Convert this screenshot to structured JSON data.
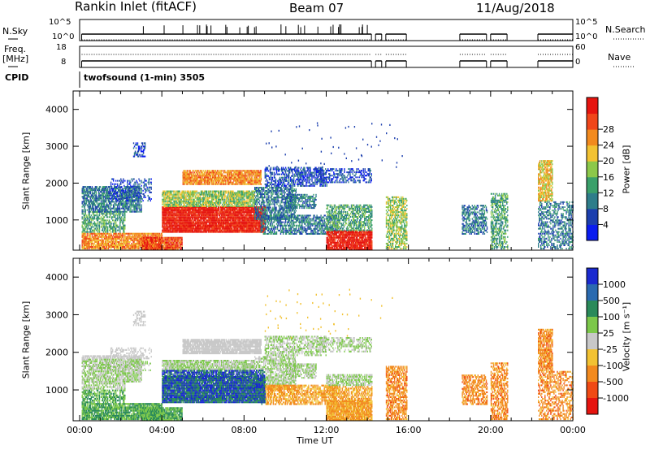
{
  "header": {
    "station": "Rankin Inlet (fitACF)",
    "beam": "Beam 07",
    "date": "11/Aug/2018"
  },
  "top_panels": {
    "nsky_label": "N.Sky",
    "nsky_ticks": [
      "10^5",
      "10^0"
    ],
    "nsearch_label": "N.Search",
    "freq_label_line1": "Freq.",
    "freq_label_line2": "[MHz]",
    "freq_ticks": [
      "18",
      "8"
    ],
    "nave_label": "Nave",
    "nave_ticks": [
      "60",
      "0"
    ],
    "cpid_label": "CPID",
    "cpid_value": "twofsound (1-min) 3505"
  },
  "chart_data": [
    {
      "type": "heatmap",
      "name": "power",
      "ylabel": "Slant Range [km]",
      "ylim": [
        180,
        4500
      ],
      "yticks": [
        "1000",
        "2000",
        "3000",
        "4000"
      ],
      "ytick_values": [
        1000,
        2000,
        3000,
        4000
      ],
      "xlim_hours": [
        0,
        24
      ],
      "colorbar_label": "Power [dB]",
      "colorbar_ticks": [
        "4",
        "8",
        "12",
        "16",
        "20",
        "24",
        "28"
      ],
      "colors": [
        "#0a1cf0",
        "#1c3fae",
        "#2e7d8a",
        "#3aa06a",
        "#8cc84a",
        "#f2c232",
        "#f28a1e",
        "#f0461a",
        "#e6140f"
      ]
    },
    {
      "type": "heatmap",
      "name": "velocity",
      "ylabel": "Slant Range [km]",
      "ylim": [
        180,
        4500
      ],
      "yticks": [
        "1000",
        "2000",
        "3000",
        "4000"
      ],
      "ytick_values": [
        1000,
        2000,
        3000,
        4000
      ],
      "xlim_hours": [
        0,
        24
      ],
      "xlabel": "Time UT",
      "xticks": [
        "00:00",
        "04:00",
        "08:00",
        "12:00",
        "16:00",
        "20:00",
        "00:00"
      ],
      "colorbar_label": "Velocity [m s⁻¹]",
      "colorbar_ticks": [
        "1000",
        "500",
        "100",
        "25",
        "-25",
        "-100",
        "-500",
        "-1000"
      ],
      "colors": [
        "#1a2ad0",
        "#2a6ab0",
        "#2a8a5a",
        "#7cc84a",
        "#c8c8c8",
        "#f2c232",
        "#f28a1e",
        "#f04a14",
        "#e6140f"
      ]
    }
  ]
}
